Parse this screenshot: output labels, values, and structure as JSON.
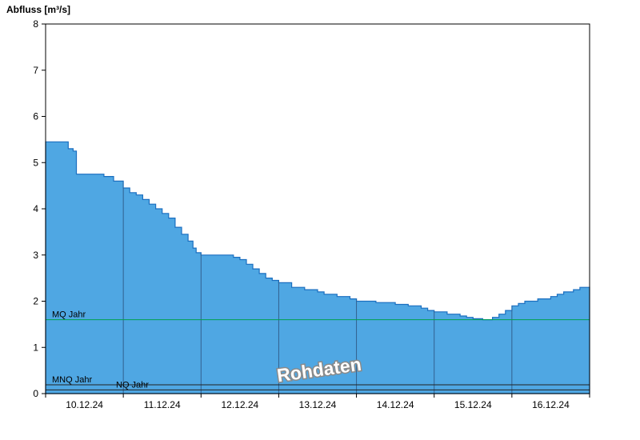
{
  "chart_data": {
    "type": "area",
    "title": "Abfluss [m³/s]",
    "ylabel": "Abfluss [m³/s]",
    "xlabel": "",
    "ylim": [
      0,
      8
    ],
    "yticks": [
      0,
      1,
      2,
      3,
      4,
      5,
      6,
      7,
      8
    ],
    "x_unit": "hours",
    "x_range_hours": [
      0,
      168
    ],
    "day_labels": [
      "10.12.24",
      "11.12.24",
      "12.12.24",
      "13.12.24",
      "14.12.24",
      "15.12.24",
      "16.12.24"
    ],
    "watermark": "Rohdaten",
    "grid": "vertical-day-boundaries-clipped-to-area",
    "legend_position": "none",
    "series": [
      {
        "name": "Abfluss Rohdaten",
        "step": true,
        "points": [
          [
            0,
            5.45
          ],
          [
            7,
            5.3
          ],
          [
            8.5,
            5.25
          ],
          [
            9.5,
            4.75
          ],
          [
            18,
            4.7
          ],
          [
            21,
            4.6
          ],
          [
            24,
            4.45
          ],
          [
            26,
            4.35
          ],
          [
            28,
            4.3
          ],
          [
            30,
            4.2
          ],
          [
            32,
            4.1
          ],
          [
            34,
            4.0
          ],
          [
            36,
            3.9
          ],
          [
            38,
            3.8
          ],
          [
            40,
            3.6
          ],
          [
            42,
            3.45
          ],
          [
            44,
            3.3
          ],
          [
            45.5,
            3.15
          ],
          [
            46.5,
            3.05
          ],
          [
            48,
            3.0
          ],
          [
            58,
            2.95
          ],
          [
            60,
            2.9
          ],
          [
            62,
            2.8
          ],
          [
            64,
            2.7
          ],
          [
            66,
            2.6
          ],
          [
            68,
            2.5
          ],
          [
            70,
            2.45
          ],
          [
            72,
            2.4
          ],
          [
            76,
            2.3
          ],
          [
            80,
            2.25
          ],
          [
            84,
            2.2
          ],
          [
            86,
            2.15
          ],
          [
            90,
            2.1
          ],
          [
            94,
            2.05
          ],
          [
            96,
            2.0
          ],
          [
            102,
            1.97
          ],
          [
            108,
            1.93
          ],
          [
            112,
            1.9
          ],
          [
            116,
            1.85
          ],
          [
            118,
            1.8
          ],
          [
            120,
            1.77
          ],
          [
            124,
            1.72
          ],
          [
            128,
            1.68
          ],
          [
            130,
            1.65
          ],
          [
            132,
            1.62
          ],
          [
            135,
            1.6
          ],
          [
            138,
            1.65
          ],
          [
            140,
            1.72
          ],
          [
            142,
            1.8
          ],
          [
            144,
            1.9
          ],
          [
            146,
            1.95
          ],
          [
            148,
            2.0
          ],
          [
            152,
            2.05
          ],
          [
            156,
            2.1
          ],
          [
            158,
            2.15
          ],
          [
            160,
            2.2
          ],
          [
            163,
            2.25
          ],
          [
            165,
            2.3
          ]
        ]
      }
    ],
    "reference_lines": [
      {
        "label": "MQ Jahr",
        "value": 1.6,
        "color": "#00a050",
        "label_dx": 8
      },
      {
        "label": "MNQ Jahr",
        "value": 0.19,
        "color": "#222222",
        "label_dx": 8
      },
      {
        "label": "NQ Jahr",
        "value": 0.08,
        "color": "#222222",
        "label_dx": 88
      }
    ],
    "colors": {
      "area_fill": "#4FA7E3",
      "area_stroke": "#1B6FC0",
      "gridline": "#33608F",
      "axis": "#000000",
      "tick_label": "#000000",
      "watermark_fill": "#FFFFFF",
      "watermark_outline": "#8A8A8A"
    }
  }
}
